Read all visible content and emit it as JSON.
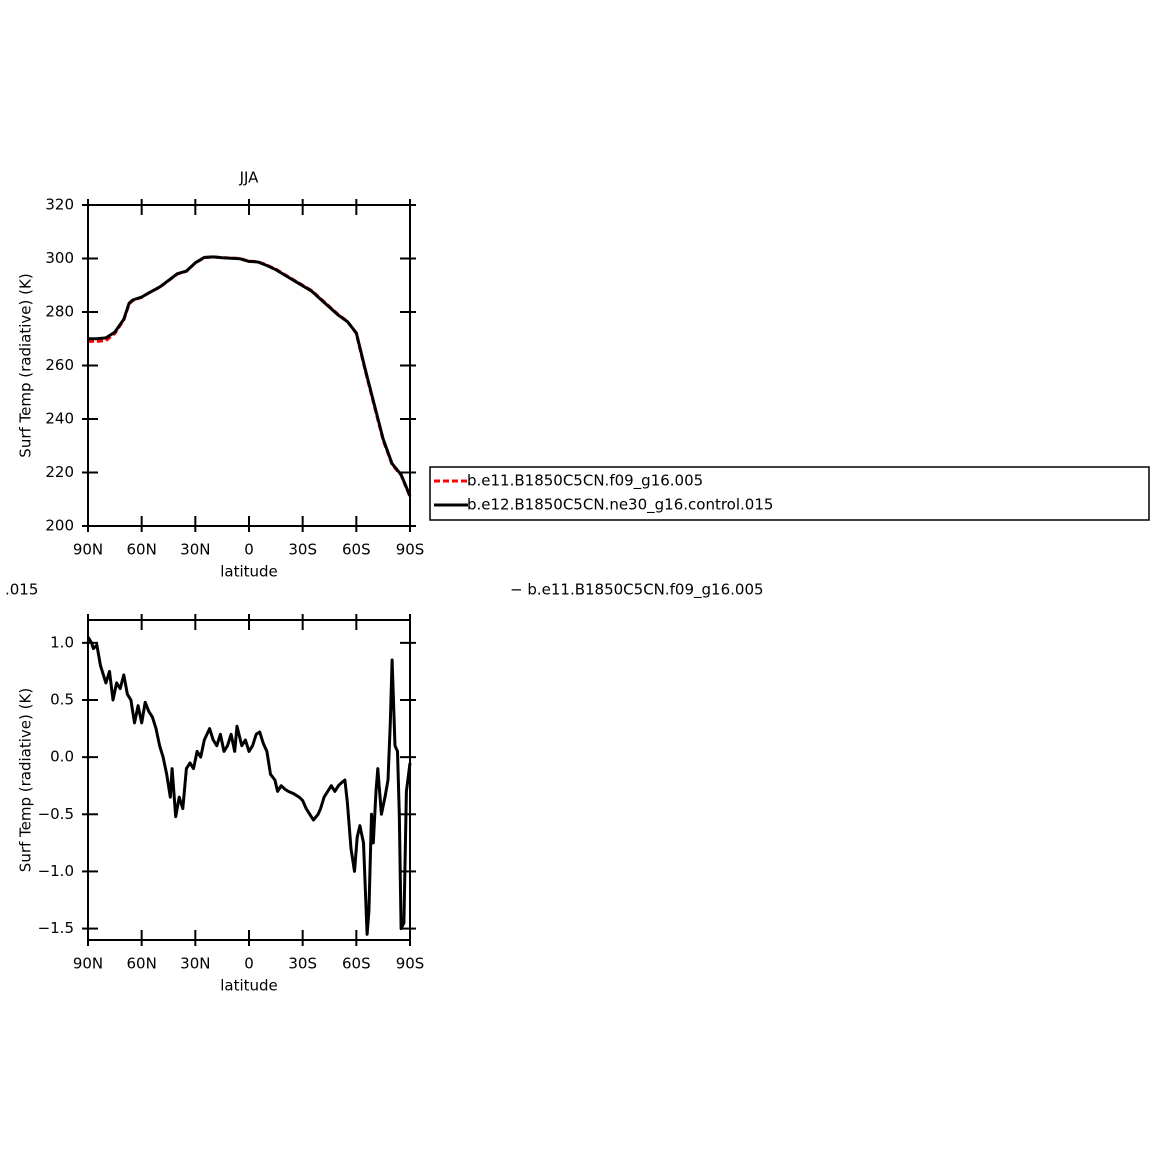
{
  "chart_data": [
    {
      "type": "line",
      "title": "JJA",
      "ylabel": "Surf Temp (radiative) (K)",
      "xlabel": "latitude",
      "x": [
        90,
        85,
        80,
        75,
        70,
        67,
        65,
        60,
        55,
        50,
        45,
        40,
        35,
        30,
        25,
        20,
        15,
        10,
        5,
        0,
        -5,
        -10,
        -15,
        -20,
        -25,
        -30,
        -35,
        -40,
        -45,
        -50,
        -55,
        -60,
        -65,
        -70,
        -75,
        -80,
        -85,
        -90
      ],
      "series": [
        {
          "name": "b.e11.B1850C5CN.f09_g16.005",
          "color": "#ff0000",
          "dashed": true,
          "values": [
            269,
            269,
            269.3,
            272,
            277,
            283,
            284.3,
            285.5,
            287.5,
            289.2,
            291.7,
            294.2,
            295.2,
            298.3,
            300.3,
            300.6,
            300.3,
            300.2,
            300,
            299,
            298.8,
            297.5,
            296,
            294,
            292,
            290,
            288,
            285,
            282,
            279,
            276.5,
            272,
            258,
            245,
            232,
            223,
            219,
            211
          ]
        },
        {
          "name": "b.e12.B1850C5CN.ne30_g16.control.015",
          "color": "#000000",
          "dashed": false,
          "values": [
            270,
            270,
            270.3,
            272.5,
            277.3,
            283.3,
            284.5,
            285.6,
            287.5,
            289.3,
            291.8,
            294.3,
            295.3,
            298.4,
            300.4,
            300.6,
            300.3,
            300.1,
            299.9,
            298.9,
            298.7,
            297.4,
            295.8,
            293.8,
            291.8,
            289.8,
            287.8,
            284.8,
            281.8,
            278.8,
            276.4,
            272.2,
            258.5,
            245.5,
            232.5,
            223.3,
            219.2,
            211.2
          ]
        }
      ],
      "xlim": [
        90,
        -90
      ],
      "ylim": [
        200,
        320
      ],
      "xticks": [
        {
          "value": 90,
          "label": "90N"
        },
        {
          "value": 60,
          "label": "60N"
        },
        {
          "value": 30,
          "label": "30N"
        },
        0,
        {
          "value": -30,
          "label": "30S"
        },
        {
          "value": -60,
          "label": "60S"
        },
        {
          "value": -90,
          "label": "90S"
        }
      ],
      "yticks": [
        200,
        220,
        240,
        260,
        280,
        300,
        320
      ],
      "legend": "right"
    },
    {
      "type": "line",
      "ylabel": "Surf Temp (radiative) (K)",
      "xlabel": "latitude",
      "x": [
        90,
        88,
        87,
        85,
        83,
        80,
        78,
        76,
        74,
        72,
        70,
        68,
        66,
        64,
        62,
        60,
        58,
        56,
        54,
        52,
        50,
        48,
        46,
        44,
        43,
        41,
        39,
        37,
        35,
        33,
        31,
        29,
        27,
        25,
        22,
        20,
        18,
        16,
        14,
        12,
        10,
        8,
        6.7,
        4,
        2,
        0,
        -2,
        -4,
        -6,
        -8,
        -10,
        -12,
        -14.5,
        -16,
        -18,
        -20,
        -22,
        -25,
        -28,
        -30,
        -32,
        -34,
        -36,
        -38.6,
        -40,
        -42,
        -44,
        -46,
        -48,
        -50,
        -52,
        -53.6,
        -55,
        -57,
        -59,
        -60.5,
        -62,
        -64,
        -66,
        -67,
        -68.5,
        -69.5,
        -70,
        -71,
        -72,
        -73,
        -74,
        -76,
        -77.7,
        -79,
        -80,
        -81.6,
        -83,
        -84,
        -85,
        -86.6,
        -88,
        -90
      ],
      "series": [
        {
          "name": "b.e11.B1850C5CN.f09_g16.005",
          "color": "#000000",
          "dashed": false,
          "values": [
            1.05,
            1.0,
            0.95,
            0.98,
            0.8,
            0.65,
            0.75,
            0.5,
            0.65,
            0.6,
            0.72,
            0.55,
            0.5,
            0.3,
            0.45,
            0.3,
            0.48,
            0.4,
            0.35,
            0.25,
            0.1,
            0.0,
            -0.15,
            -0.35,
            -0.1,
            -0.52,
            -0.35,
            -0.45,
            -0.1,
            -0.05,
            -0.1,
            0.05,
            0.0,
            0.15,
            0.25,
            0.15,
            0.1,
            0.2,
            0.05,
            0.1,
            0.2,
            0.05,
            0.27,
            0.1,
            0.15,
            0.05,
            0.1,
            0.2,
            0.22,
            0.12,
            0.05,
            -0.15,
            -0.2,
            -0.3,
            -0.25,
            -0.28,
            -0.3,
            -0.32,
            -0.35,
            -0.38,
            -0.45,
            -0.5,
            -0.55,
            -0.5,
            -0.45,
            -0.35,
            -0.3,
            -0.25,
            -0.3,
            -0.25,
            -0.22,
            -0.2,
            -0.4,
            -0.8,
            -1.0,
            -0.7,
            -0.6,
            -0.75,
            -1.55,
            -1.35,
            -0.5,
            -0.75,
            -0.6,
            -0.3,
            -0.1,
            -0.3,
            -0.5,
            -0.35,
            -0.2,
            0.3,
            0.85,
            0.1,
            0.05,
            -0.5,
            -1.5,
            -1.45,
            -0.3,
            -0.05
          ]
        }
      ],
      "xlim": [
        90,
        -90
      ],
      "ylim": [
        -1.6,
        1.2
      ],
      "xticks": [
        {
          "value": 90,
          "label": "90N"
        },
        {
          "value": 60,
          "label": "60N"
        },
        {
          "value": 30,
          "label": "30N"
        },
        0,
        {
          "value": -30,
          "label": "30S"
        },
        {
          "value": -60,
          "label": "60S"
        },
        {
          "value": -90,
          "label": "90S"
        }
      ],
      "yticks": [
        {
          "value": -1.5,
          "label": "−1.5"
        },
        {
          "value": -1.0,
          "label": "−1.0"
        },
        {
          "value": -0.5,
          "label": "−0.5"
        },
        {
          "value": 0,
          "label": "0.0"
        },
        {
          "value": 0.5,
          "label": "0.5"
        },
        {
          "value": 1.0,
          "label": "1.0"
        }
      ],
      "annotations": [
        ".015",
        "− b.e11.B1850C5CN.f09_g16.005"
      ]
    }
  ]
}
